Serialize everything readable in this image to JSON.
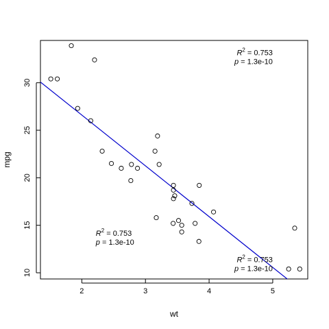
{
  "chart_data": {
    "type": "scatter",
    "xlabel": "wt",
    "ylabel": "mpg",
    "xlim": [
      1.35,
      5.55
    ],
    "ylim": [
      9.35,
      34.45
    ],
    "x_ticks": [
      2,
      3,
      4,
      5
    ],
    "y_ticks": [
      10,
      15,
      20,
      25,
      30
    ],
    "grid": false,
    "points": [
      {
        "x": 1.513,
        "y": 30.4
      },
      {
        "x": 1.615,
        "y": 30.4
      },
      {
        "x": 1.835,
        "y": 33.9
      },
      {
        "x": 1.935,
        "y": 27.3
      },
      {
        "x": 2.14,
        "y": 26.0
      },
      {
        "x": 2.2,
        "y": 32.4
      },
      {
        "x": 2.32,
        "y": 22.8
      },
      {
        "x": 2.465,
        "y": 21.5
      },
      {
        "x": 2.62,
        "y": 21.0
      },
      {
        "x": 2.77,
        "y": 19.7
      },
      {
        "x": 2.78,
        "y": 21.4
      },
      {
        "x": 2.875,
        "y": 21.0
      },
      {
        "x": 3.15,
        "y": 22.8
      },
      {
        "x": 3.17,
        "y": 15.8
      },
      {
        "x": 3.19,
        "y": 24.4
      },
      {
        "x": 3.215,
        "y": 21.4
      },
      {
        "x": 3.435,
        "y": 15.2
      },
      {
        "x": 3.44,
        "y": 18.7
      },
      {
        "x": 3.44,
        "y": 19.2
      },
      {
        "x": 3.44,
        "y": 17.8
      },
      {
        "x": 3.46,
        "y": 18.1
      },
      {
        "x": 3.52,
        "y": 15.5
      },
      {
        "x": 3.57,
        "y": 14.3
      },
      {
        "x": 3.57,
        "y": 15.0
      },
      {
        "x": 3.73,
        "y": 17.3
      },
      {
        "x": 3.78,
        "y": 15.2
      },
      {
        "x": 3.84,
        "y": 13.3
      },
      {
        "x": 3.845,
        "y": 19.2
      },
      {
        "x": 4.07,
        "y": 16.4
      },
      {
        "x": 5.25,
        "y": 10.4
      },
      {
        "x": 5.345,
        "y": 14.7
      },
      {
        "x": 5.424,
        "y": 10.4
      }
    ],
    "fit_line": {
      "intercept": 37.285,
      "slope": -5.344,
      "color": "#0000cc"
    },
    "annotations": [
      {
        "id": "top-right",
        "r2_prefix": "R",
        "r2_exp": "2",
        "r2_text": " = 0.753",
        "p_text": "p = 1.3e-10",
        "anchor": "end",
        "x": 5.0,
        "y": 32.9
      },
      {
        "id": "bottom-left",
        "r2_prefix": "R",
        "r2_exp": "2",
        "r2_text": " = 0.753",
        "p_text": "p = 1.3e-10",
        "anchor": "start",
        "x": 2.22,
        "y": 13.9
      },
      {
        "id": "bottom-right",
        "r2_prefix": "R",
        "r2_exp": "2",
        "r2_text": " = 0.753",
        "p_text": "p = 1.3e-10",
        "anchor": "end",
        "x": 5.0,
        "y": 11.1
      }
    ]
  }
}
